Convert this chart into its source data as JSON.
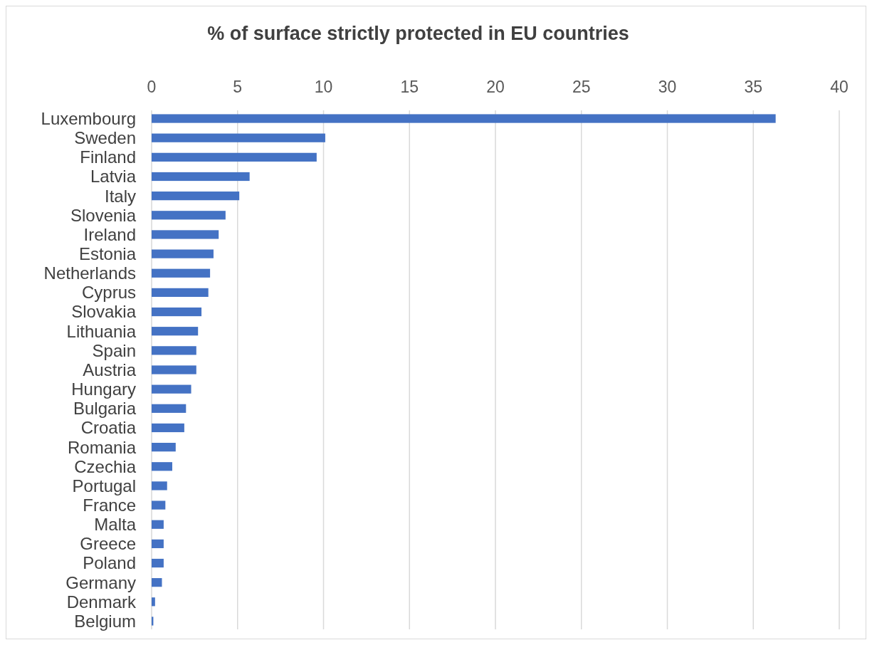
{
  "chart_data": {
    "type": "bar",
    "orientation": "horizontal",
    "title": "% of surface strictly protected in EU countries",
    "categories": [
      "Luxembourg",
      "Sweden",
      "Finland",
      "Latvia",
      "Italy",
      "Slovenia",
      "Ireland",
      "Estonia",
      "Netherlands",
      "Cyprus",
      "Slovakia",
      "Lithuania",
      "Spain",
      "Austria",
      "Hungary",
      "Bulgaria",
      "Croatia",
      "Romania",
      "Czechia",
      "Portugal",
      "France",
      "Malta",
      "Greece",
      "Poland",
      "Germany",
      "Denmark",
      "Belgium"
    ],
    "values": [
      36.3,
      10.1,
      9.6,
      5.7,
      5.1,
      4.3,
      3.9,
      3.6,
      3.4,
      3.3,
      2.9,
      2.7,
      2.6,
      2.6,
      2.3,
      2.0,
      1.9,
      1.4,
      1.2,
      0.9,
      0.8,
      0.7,
      0.7,
      0.7,
      0.6,
      0.2,
      0.1
    ],
    "color": "#4472c4",
    "xlim": [
      0,
      40
    ],
    "xticks": [
      0,
      5,
      10,
      15,
      20,
      25,
      30,
      35,
      40
    ],
    "grid": "x"
  }
}
